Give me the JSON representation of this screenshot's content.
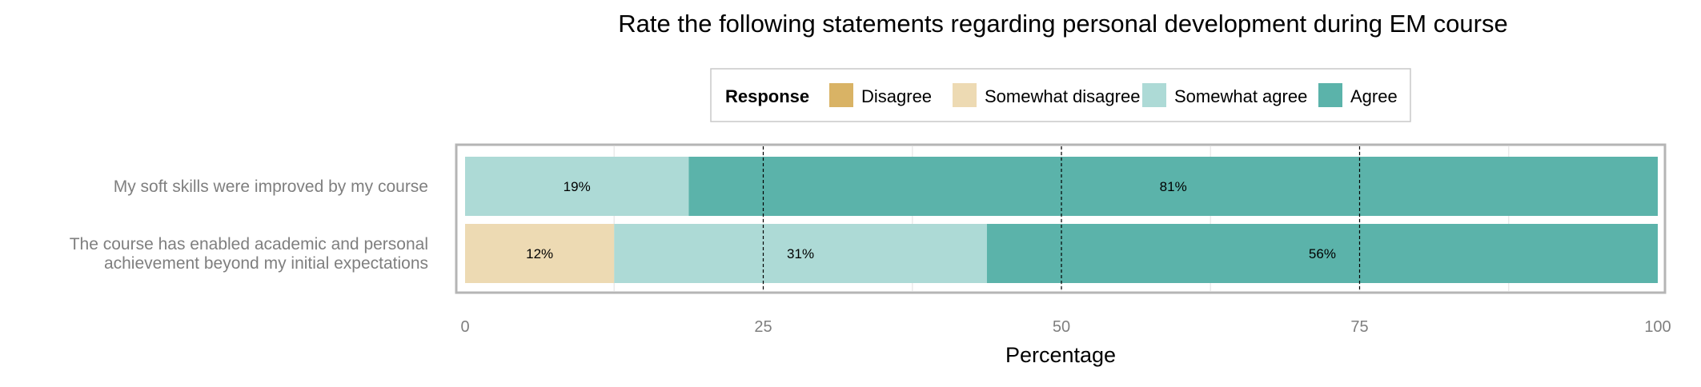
{
  "chart_data": {
    "type": "bar",
    "orientation": "horizontal",
    "stacked": true,
    "title": "Rate the following statements regarding personal development during EM course",
    "xlabel": "Percentage",
    "ylabel": "",
    "xlim": [
      0,
      100
    ],
    "xticks": [
      "0",
      "25",
      "50",
      "75",
      "100"
    ],
    "legend": {
      "title": "Response",
      "placement": "top",
      "entries": [
        {
          "name": "Disagree",
          "color": "#D9B365"
        },
        {
          "name": "Somewhat disagree",
          "color": "#EDDAB3"
        },
        {
          "name": "Somewhat agree",
          "color": "#ADDAD6"
        },
        {
          "name": "Agree",
          "color": "#5BB3AA"
        }
      ]
    },
    "categories": [
      {
        "lines": [
          "My soft skills were improved by my course"
        ]
      },
      {
        "lines": [
          "The course has enabled academic and personal",
          "achievement beyond my initial expectations"
        ]
      }
    ],
    "series": [
      {
        "name": "Disagree",
        "color": "#D9B365",
        "values": [
          0,
          0
        ],
        "labels": [
          "",
          ""
        ]
      },
      {
        "name": "Somewhat disagree",
        "color": "#EDDAB3",
        "values": [
          0,
          12.5
        ],
        "labels": [
          "",
          "12%"
        ]
      },
      {
        "name": "Somewhat agree",
        "color": "#ADDAD6",
        "values": [
          18.75,
          31.25
        ],
        "labels": [
          "19%",
          "31%"
        ]
      },
      {
        "name": "Agree",
        "color": "#5BB3AA",
        "values": [
          81.25,
          56.25
        ],
        "labels": [
          "81%",
          "56%"
        ]
      }
    ],
    "reference_lines": [
      25,
      50,
      75
    ],
    "grid": true
  }
}
